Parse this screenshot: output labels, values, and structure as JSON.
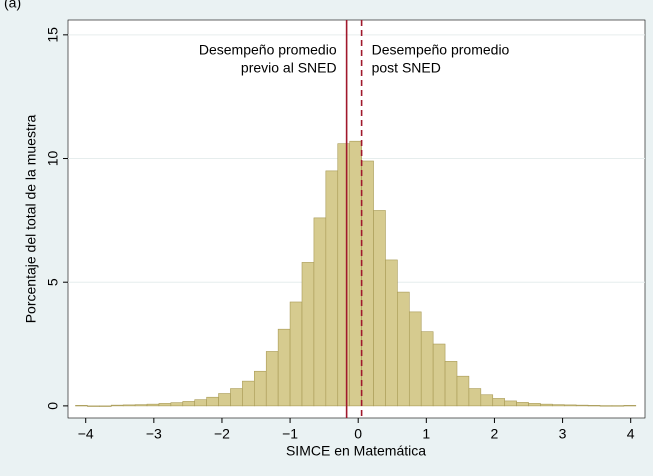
{
  "chart_data": {
    "type": "histogram",
    "panel_label": "(a)",
    "x_label": "SIMCE en Matemática",
    "y_label": "Porcentaje del total de la muestra",
    "bins": [
      -4.15,
      -3.975,
      -3.8,
      -3.625,
      -3.45,
      -3.275,
      -3.1,
      -2.925,
      -2.75,
      -2.575,
      -2.4,
      -2.225,
      -2.05,
      -1.875,
      -1.7,
      -1.525,
      -1.35,
      -1.175,
      -1.0,
      -0.825,
      -0.65,
      -0.475,
      -0.3,
      -0.125,
      0.05,
      0.225,
      0.4,
      0.575,
      0.75,
      0.925,
      1.1,
      1.275,
      1.45,
      1.625,
      1.8,
      1.975,
      2.15,
      2.325,
      2.5,
      2.675,
      2.85,
      3.025,
      3.2,
      3.375,
      3.55,
      3.725,
      3.9,
      4.075
    ],
    "values": [
      0.02,
      0,
      0,
      0.03,
      0.04,
      0.05,
      0.07,
      0.1,
      0.13,
      0.18,
      0.25,
      0.35,
      0.5,
      0.7,
      1.0,
      1.4,
      2.2,
      3.1,
      4.2,
      5.8,
      7.6,
      9.5,
      10.6,
      10.7,
      9.9,
      7.9,
      5.9,
      4.6,
      3.8,
      3.0,
      2.5,
      1.8,
      1.2,
      0.7,
      0.45,
      0.3,
      0.2,
      0.14,
      0.1,
      0.07,
      0.05,
      0.04,
      0.03,
      0.02,
      0.01,
      0.01,
      0.02
    ],
    "color": "#d6cb8f",
    "edge_color": "#a89a55",
    "xlim": [
      -4.26,
      4.21
    ],
    "ylim": [
      -0.49,
      15.6
    ],
    "xticks": [
      {
        "value": -4,
        "label": "−4"
      },
      {
        "value": -3,
        "label": "−3"
      },
      {
        "value": -2,
        "label": "−2"
      },
      {
        "value": -1,
        "label": "−1"
      },
      0,
      1,
      2,
      3,
      4
    ],
    "yticks": [
      0,
      5,
      10,
      15
    ],
    "grid": true,
    "reference_lines": [
      {
        "x": -0.17,
        "style": "solid",
        "color": "#a0182c",
        "label": [
          "Desempeño promedio",
          "previo al SNED"
        ]
      },
      {
        "x": 0.05,
        "style": "dashed",
        "color": "#a0182c",
        "label": [
          "Desempeño promedio",
          "post SNED"
        ]
      }
    ]
  }
}
